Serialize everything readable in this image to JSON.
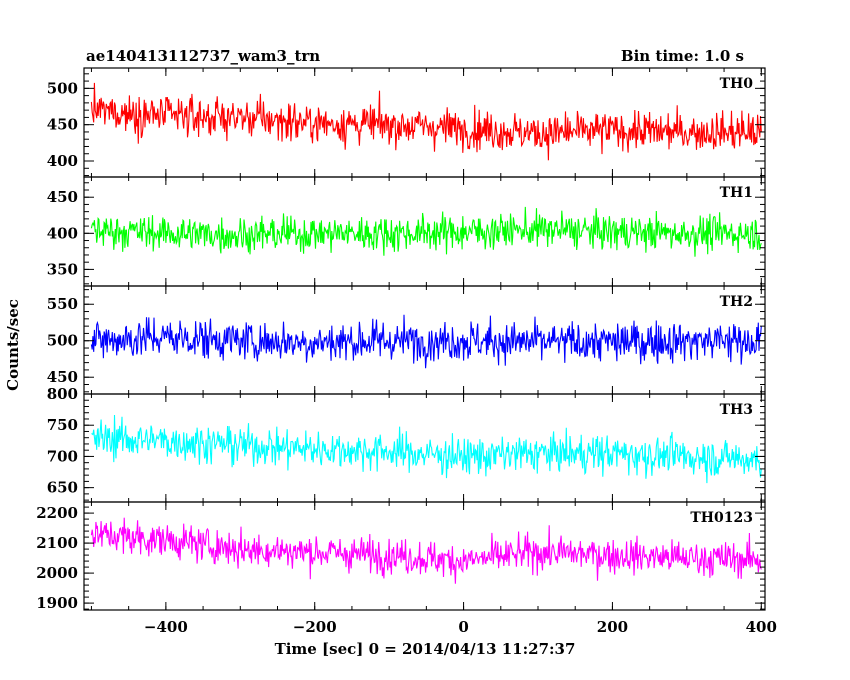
{
  "header": {
    "left_title": "ae140413112737_wam3_trn",
    "right_title": "Bin time: 1.0 s"
  },
  "axes": {
    "ylabel": "Counts/sec",
    "xlabel": "Time [sec] 0 = 2014/04/13 11:27:37"
  },
  "chart_data": {
    "type": "line",
    "x_range": [
      -510,
      405
    ],
    "x_ticks": [
      -400,
      -200,
      0,
      200,
      400
    ],
    "x_tick_labels": [
      "−400",
      "−200",
      "0",
      "200",
      "400"
    ],
    "bin_time_s": 1.0,
    "panels": [
      {
        "name": "TH0",
        "color": "#ff0000",
        "ylim": [
          378,
          528
        ],
        "y_ticks": [
          400,
          450,
          500
        ],
        "series": [
          {
            "x": -500,
            "y": 470
          },
          {
            "x": -400,
            "y": 462
          },
          {
            "x": -300,
            "y": 460
          },
          {
            "x": -200,
            "y": 452
          },
          {
            "x": -100,
            "y": 450
          },
          {
            "x": 0,
            "y": 445
          },
          {
            "x": 100,
            "y": 438
          },
          {
            "x": 200,
            "y": 442
          },
          {
            "x": 300,
            "y": 440
          },
          {
            "x": 400,
            "y": 440
          }
        ],
        "noise": 22
      },
      {
        "name": "TH1",
        "color": "#00ff00",
        "ylim": [
          327,
          478
        ],
        "y_ticks": [
          350,
          400,
          450
        ],
        "series": [
          {
            "x": -500,
            "y": 405
          },
          {
            "x": -400,
            "y": 400
          },
          {
            "x": -300,
            "y": 398
          },
          {
            "x": -200,
            "y": 400
          },
          {
            "x": -100,
            "y": 400
          },
          {
            "x": 0,
            "y": 402
          },
          {
            "x": 100,
            "y": 405
          },
          {
            "x": 200,
            "y": 402
          },
          {
            "x": 300,
            "y": 400
          },
          {
            "x": 400,
            "y": 400
          }
        ],
        "noise": 20
      },
      {
        "name": "TH2",
        "color": "#0000ff",
        "ylim": [
          427,
          575
        ],
        "y_ticks": [
          450,
          500,
          550
        ],
        "series": [
          {
            "x": -500,
            "y": 500
          },
          {
            "x": -400,
            "y": 505
          },
          {
            "x": -300,
            "y": 500
          },
          {
            "x": -200,
            "y": 498
          },
          {
            "x": -100,
            "y": 500
          },
          {
            "x": 0,
            "y": 500
          },
          {
            "x": 100,
            "y": 498
          },
          {
            "x": 200,
            "y": 498
          },
          {
            "x": 300,
            "y": 500
          },
          {
            "x": 400,
            "y": 500
          }
        ],
        "noise": 23
      },
      {
        "name": "TH3",
        "color": "#00ffff",
        "ylim": [
          627,
          800
        ],
        "y_ticks": [
          650,
          700,
          750,
          800
        ],
        "series": [
          {
            "x": -500,
            "y": 730
          },
          {
            "x": -400,
            "y": 725
          },
          {
            "x": -300,
            "y": 718
          },
          {
            "x": -200,
            "y": 712
          },
          {
            "x": -100,
            "y": 708
          },
          {
            "x": 0,
            "y": 700
          },
          {
            "x": 100,
            "y": 705
          },
          {
            "x": 200,
            "y": 705
          },
          {
            "x": 300,
            "y": 700
          },
          {
            "x": 400,
            "y": 695
          }
        ],
        "noise": 25
      },
      {
        "name": "TH0123",
        "color": "#ff00ff",
        "ylim": [
          1877,
          2237
        ],
        "y_ticks": [
          1900,
          2000,
          2100,
          2200
        ],
        "series": [
          {
            "x": -500,
            "y": 2130
          },
          {
            "x": -400,
            "y": 2110
          },
          {
            "x": -300,
            "y": 2080
          },
          {
            "x": -200,
            "y": 2070
          },
          {
            "x": -100,
            "y": 2060
          },
          {
            "x": 0,
            "y": 2040
          },
          {
            "x": 100,
            "y": 2070
          },
          {
            "x": 200,
            "y": 2060
          },
          {
            "x": 300,
            "y": 2050
          },
          {
            "x": 400,
            "y": 2045
          }
        ],
        "noise": 48
      }
    ]
  }
}
